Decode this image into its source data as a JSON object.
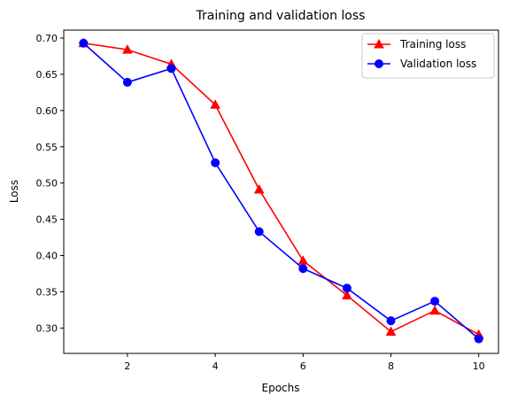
{
  "chart_data": {
    "type": "line",
    "title": "Training and validation loss",
    "xlabel": "Epochs",
    "ylabel": "Loss",
    "x": [
      1,
      2,
      3,
      4,
      5,
      6,
      7,
      8,
      9,
      10
    ],
    "xlim": [
      0.55,
      10.45
    ],
    "ylim": [
      0.265,
      0.711
    ],
    "xticks": [
      2,
      4,
      6,
      8,
      10
    ],
    "yticks": [
      0.3,
      0.35,
      0.4,
      0.45,
      0.5,
      0.55,
      0.6,
      0.65,
      0.7
    ],
    "grid": false,
    "legend": "top-right",
    "series": [
      {
        "name": "Training loss",
        "color": "#ff0000",
        "marker": "triangle",
        "values": [
          0.693,
          0.684,
          0.664,
          0.608,
          0.491,
          0.393,
          0.345,
          0.295,
          0.324,
          0.291
        ]
      },
      {
        "name": "Validation loss",
        "color": "#0000ff",
        "marker": "circle",
        "values": [
          0.693,
          0.639,
          0.658,
          0.528,
          0.433,
          0.382,
          0.355,
          0.31,
          0.337,
          0.285
        ]
      }
    ]
  }
}
